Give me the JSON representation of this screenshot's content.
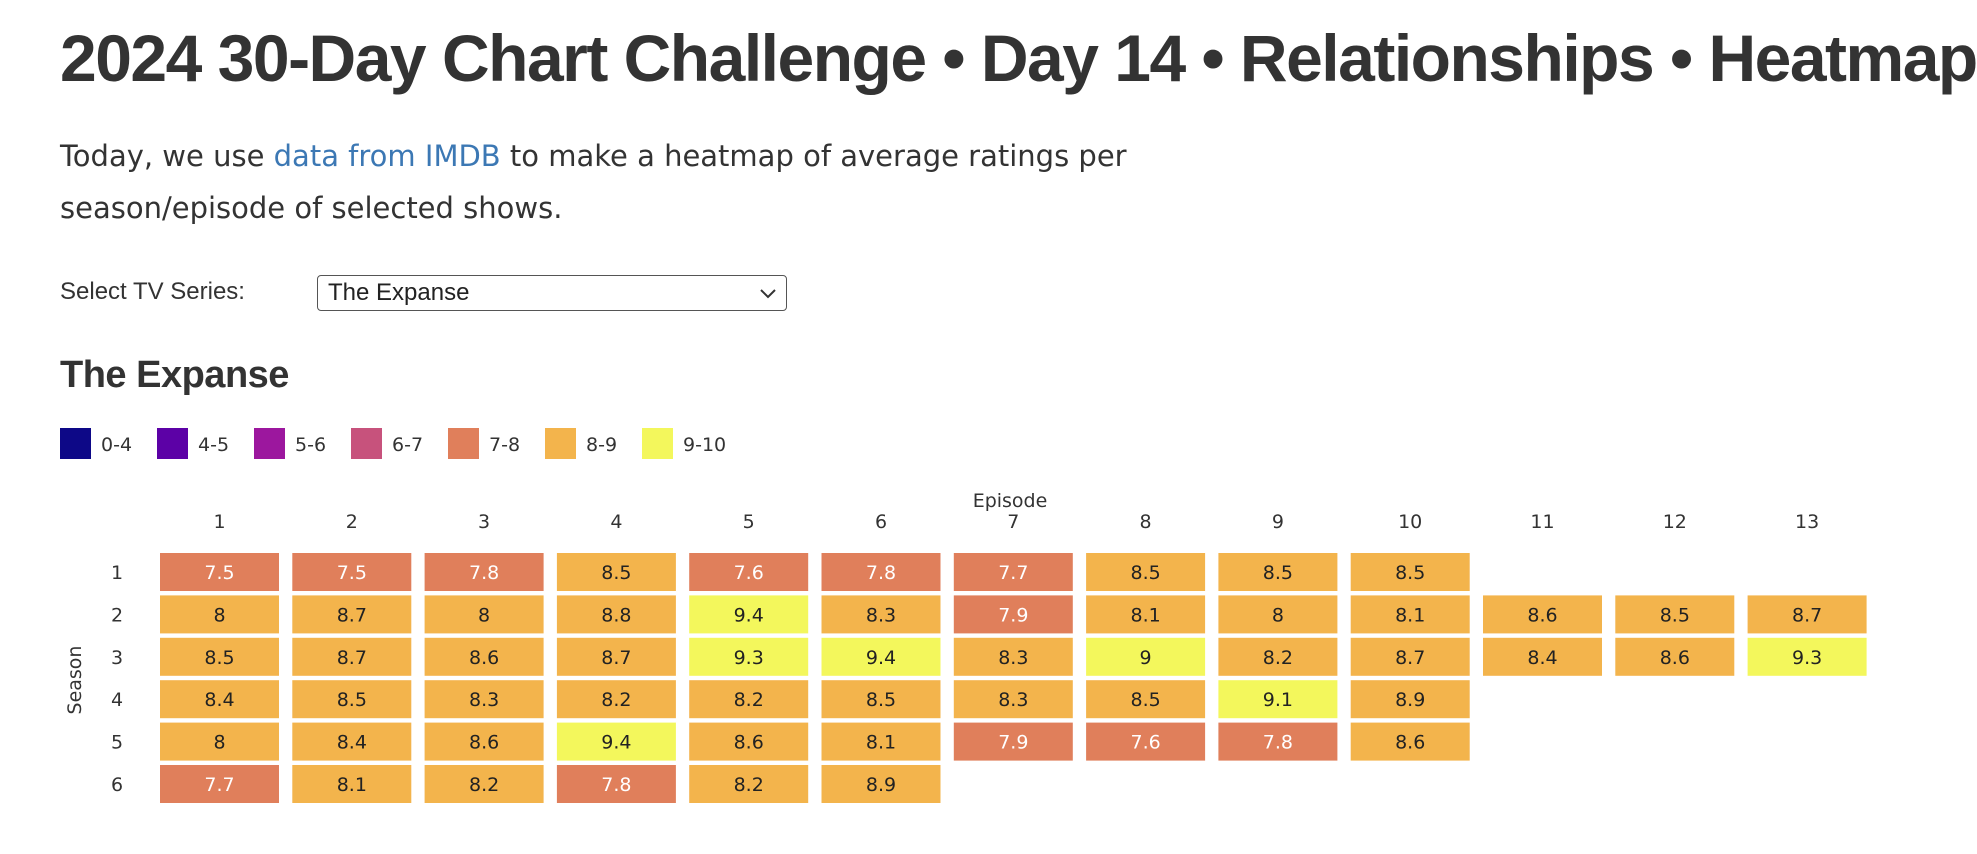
{
  "page": {
    "title": "2024 30-Day Chart Challenge • Day 14 • Relationships • Heatmap",
    "intro_before": "Today, we use ",
    "intro_link": "data from IMDB",
    "intro_after": " to make a heatmap of average ratings per season/episode of selected shows."
  },
  "selector": {
    "label": "Select TV Series:",
    "selected": "The Expanse",
    "icon": "chevron-down-icon"
  },
  "chart_data": {
    "type": "heatmap",
    "title": "The Expanse",
    "xlabel": "Episode",
    "ylabel": "Season",
    "episodes": [
      1,
      2,
      3,
      4,
      5,
      6,
      7,
      8,
      9,
      10,
      11,
      12,
      13
    ],
    "seasons": [
      1,
      2,
      3,
      4,
      5,
      6
    ],
    "ratings": [
      [
        7.5,
        7.5,
        7.8,
        8.5,
        7.6,
        7.8,
        7.7,
        8.5,
        8.5,
        8.5,
        null,
        null,
        null
      ],
      [
        8,
        8.7,
        8,
        8.8,
        9.4,
        8.3,
        7.9,
        8.1,
        8,
        8.1,
        8.6,
        8.5,
        8.7
      ],
      [
        8.5,
        8.7,
        8.6,
        8.7,
        9.3,
        9.4,
        8.3,
        9,
        8.2,
        8.7,
        8.4,
        8.6,
        9.3
      ],
      [
        8.4,
        8.5,
        8.3,
        8.2,
        8.2,
        8.5,
        8.3,
        8.5,
        9.1,
        8.9,
        null,
        null,
        null
      ],
      [
        8,
        8.4,
        8.6,
        9.4,
        8.6,
        8.1,
        7.9,
        7.6,
        7.8,
        8.6,
        null,
        null,
        null
      ],
      [
        7.7,
        8.1,
        8.2,
        7.8,
        8.2,
        8.9,
        null,
        null,
        null,
        null,
        null,
        null,
        null
      ]
    ],
    "legend": [
      {
        "label": "0-4",
        "min": 0,
        "max": 4,
        "color": "#0d0887"
      },
      {
        "label": "4-5",
        "min": 4,
        "max": 5,
        "color": "#5c01a6"
      },
      {
        "label": "5-6",
        "min": 5,
        "max": 6,
        "color": "#9c179e"
      },
      {
        "label": "6-7",
        "min": 6,
        "max": 7,
        "color": "#c7527c"
      },
      {
        "label": "7-8",
        "min": 7,
        "max": 8,
        "color": "#e07f5b"
      },
      {
        "label": "8-9",
        "min": 8,
        "max": 9,
        "color": "#f3b44c"
      },
      {
        "label": "9-10",
        "min": 9,
        "max": 10,
        "color": "#f3f75c"
      }
    ],
    "legend_placement": "top-left",
    "grid": false
  },
  "colors": {
    "link": "#3c78b4",
    "text": "#333333",
    "cell_text_dark": "#222222",
    "cell_text_light": "#ffffff"
  }
}
